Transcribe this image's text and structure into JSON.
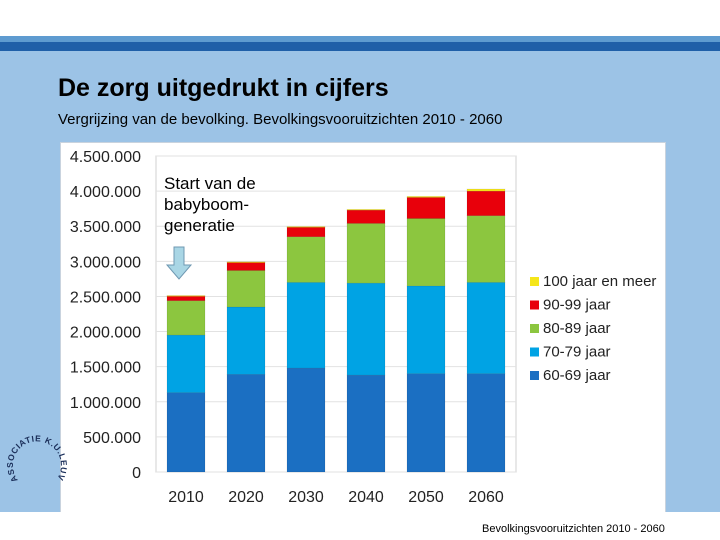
{
  "slide": {
    "title": "De zorg uitgedrukt in cijfers",
    "subtitle": "Vergrijzing van de bevolking. Bevolkingsvooruitzichten 2010 - 2060",
    "footer": "Bevolkingsvooruitzichten 2010 - 2060",
    "logo_text": "ASSOCIATIE K.U.LEUVEN"
  },
  "chart_data": {
    "type": "bar",
    "stacked": true,
    "categories": [
      "2010",
      "2020",
      "2030",
      "2040",
      "2050",
      "2060"
    ],
    "y_tick_labels": [
      "0",
      "500.000",
      "1.000.000",
      "1.500.000",
      "2.000.000",
      "2.500.000",
      "3.000.000",
      "3.500.000",
      "4.000.000",
      "4.500.000"
    ],
    "ylim": [
      0,
      4500000
    ],
    "series": [
      {
        "name": "60-69 jaar",
        "color": "#1b6fc2",
        "values": [
          1130000,
          1390000,
          1480000,
          1380000,
          1400000,
          1400000
        ]
      },
      {
        "name": "70-79 jaar",
        "color": "#00a3e4",
        "values": [
          820000,
          960000,
          1220000,
          1310000,
          1250000,
          1300000
        ]
      },
      {
        "name": "80-89 jaar",
        "color": "#8cc63f",
        "values": [
          490000,
          520000,
          650000,
          850000,
          960000,
          950000
        ]
      },
      {
        "name": "90-99 jaar",
        "color": "#e8000b",
        "values": [
          70000,
          120000,
          140000,
          190000,
          300000,
          350000
        ]
      },
      {
        "name": "100 jaar en meer",
        "color": "#f5e61a",
        "values": [
          2000,
          3000,
          5000,
          10000,
          15000,
          30000
        ]
      }
    ],
    "annotation": {
      "lines": [
        "Start van de",
        "babyboom-",
        "generatie"
      ],
      "target": "2010"
    }
  }
}
